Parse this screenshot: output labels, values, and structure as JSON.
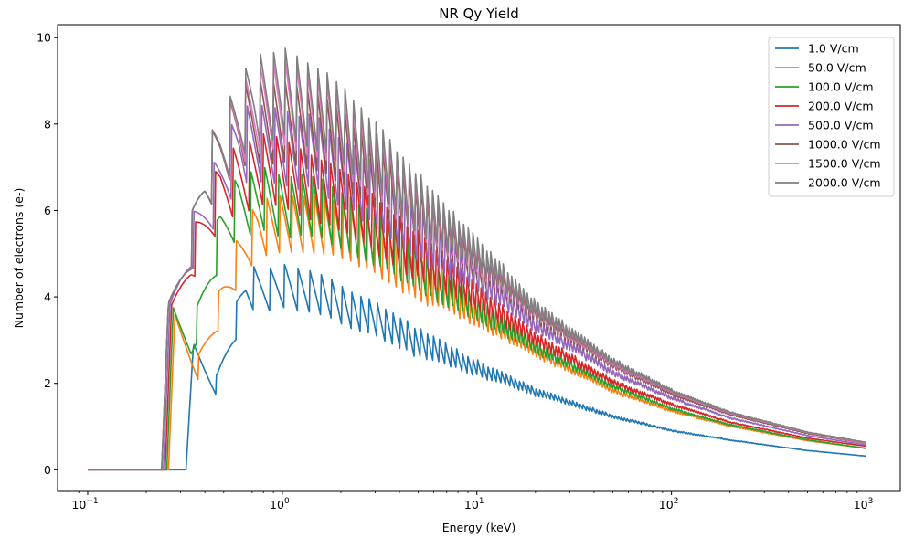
{
  "chart_data": {
    "type": "line",
    "title": "NR Qy Yield",
    "xlabel": "Energy (keV)",
    "ylabel": "Number of electrons (e-)",
    "xscale": "log",
    "xlim": [
      0.07,
      1500
    ],
    "ylim": [
      -0.5,
      10.3
    ],
    "xticks": [
      {
        "value": 0.1,
        "base": "10",
        "exp": "−1"
      },
      {
        "value": 1,
        "base": "10",
        "exp": "0"
      },
      {
        "value": 10,
        "base": "10",
        "exp": "1"
      },
      {
        "value": 100,
        "base": "10",
        "exp": "2"
      },
      {
        "value": 1000,
        "base": "10",
        "exp": "3"
      }
    ],
    "yticks": [
      0,
      2,
      4,
      6,
      8,
      10
    ],
    "legend_position": "top-right",
    "grid": false,
    "series": [
      {
        "name": "1.0 V/cm",
        "color": "#1f77b4",
        "threshold": 0.32,
        "jump": 2.95,
        "points": [
          [
            0.1,
            0
          ],
          [
            0.32,
            0
          ],
          [
            0.35,
            2.95
          ],
          [
            0.46,
            2.2
          ],
          [
            0.65,
            4.7
          ],
          [
            0.85,
            4.7
          ],
          [
            1.05,
            4.8
          ],
          [
            1.5,
            4.6
          ],
          [
            2.0,
            4.3
          ],
          [
            3.0,
            3.9
          ],
          [
            5.0,
            3.3
          ],
          [
            10.0,
            2.55
          ],
          [
            20.0,
            1.9
          ],
          [
            50.0,
            1.28
          ],
          [
            100.0,
            0.93
          ],
          [
            200.0,
            0.7
          ],
          [
            500.0,
            0.45
          ],
          [
            1000.0,
            0.32
          ]
        ]
      },
      {
        "name": "50.0 V/cm",
        "color": "#ff7f0e",
        "threshold": 0.26,
        "jump": 3.6,
        "points": [
          [
            0.1,
            0
          ],
          [
            0.26,
            0
          ],
          [
            0.28,
            3.6
          ],
          [
            0.37,
            2.65
          ],
          [
            0.5,
            4.5
          ],
          [
            0.58,
            5.3
          ],
          [
            0.75,
            6.3
          ],
          [
            1.0,
            6.4
          ],
          [
            1.5,
            6.4
          ],
          [
            2.0,
            6.2
          ],
          [
            3.0,
            5.7
          ],
          [
            5.0,
            4.95
          ],
          [
            10.0,
            3.9
          ],
          [
            20.0,
            2.9
          ],
          [
            50.0,
            1.9
          ],
          [
            100.0,
            1.4
          ],
          [
            200.0,
            1.03
          ],
          [
            500.0,
            0.68
          ],
          [
            1000.0,
            0.5
          ]
        ]
      },
      {
        "name": "100.0 V/cm",
        "color": "#2ca02c",
        "threshold": 0.255,
        "jump": 3.7,
        "points": [
          [
            0.1,
            0
          ],
          [
            0.255,
            0
          ],
          [
            0.275,
            3.75
          ],
          [
            0.34,
            3.2
          ],
          [
            0.48,
            6.1
          ],
          [
            0.6,
            6.9
          ],
          [
            0.8,
            7.0
          ],
          [
            1.0,
            6.9
          ],
          [
            1.5,
            6.8
          ],
          [
            2.0,
            6.55
          ],
          [
            3.0,
            6.0
          ],
          [
            5.0,
            5.2
          ],
          [
            10.0,
            4.05
          ],
          [
            20.0,
            3.0
          ],
          [
            50.0,
            2.0
          ],
          [
            100.0,
            1.45
          ],
          [
            200.0,
            1.06
          ],
          [
            500.0,
            0.7
          ],
          [
            1000.0,
            0.5
          ]
        ]
      },
      {
        "name": "200.0 V/cm",
        "color": "#d62728",
        "threshold": 0.25,
        "jump": 3.8,
        "points": [
          [
            0.1,
            0
          ],
          [
            0.25,
            0
          ],
          [
            0.27,
            3.82
          ],
          [
            0.34,
            5.5
          ],
          [
            0.48,
            7.2
          ],
          [
            0.6,
            7.6
          ],
          [
            0.8,
            7.8
          ],
          [
            1.0,
            7.7
          ],
          [
            1.5,
            7.3
          ],
          [
            2.0,
            7.0
          ],
          [
            3.0,
            6.4
          ],
          [
            5.0,
            5.55
          ],
          [
            10.0,
            4.35
          ],
          [
            20.0,
            3.2
          ],
          [
            50.0,
            2.1
          ],
          [
            100.0,
            1.55
          ],
          [
            200.0,
            1.12
          ],
          [
            500.0,
            0.74
          ],
          [
            1000.0,
            0.55
          ]
        ]
      },
      {
        "name": "500.0 V/cm",
        "color": "#9467bd",
        "threshold": 0.245,
        "jump": 3.85,
        "points": [
          [
            0.1,
            0
          ],
          [
            0.245,
            0
          ],
          [
            0.265,
            3.85
          ],
          [
            0.34,
            5.85
          ],
          [
            0.46,
            7.3
          ],
          [
            0.6,
            8.4
          ],
          [
            0.8,
            8.5
          ],
          [
            1.0,
            8.4
          ],
          [
            1.5,
            8.2
          ],
          [
            2.0,
            7.8
          ],
          [
            3.0,
            7.1
          ],
          [
            5.0,
            6.15
          ],
          [
            10.0,
            4.85
          ],
          [
            20.0,
            3.55
          ],
          [
            50.0,
            2.33
          ],
          [
            100.0,
            1.7
          ],
          [
            200.0,
            1.22
          ],
          [
            500.0,
            0.8
          ],
          [
            1000.0,
            0.58
          ]
        ]
      },
      {
        "name": "1000.0 V/cm",
        "color": "#8c564b",
        "threshold": 0.24,
        "jump": 3.87,
        "points": [
          [
            0.1,
            0
          ],
          [
            0.24,
            0
          ],
          [
            0.26,
            3.87
          ],
          [
            0.34,
            5.9
          ],
          [
            0.4,
            7.5
          ],
          [
            0.48,
            8.3
          ],
          [
            0.6,
            8.9
          ],
          [
            0.8,
            9.1
          ],
          [
            1.0,
            9.0
          ],
          [
            1.5,
            8.8
          ],
          [
            2.0,
            8.4
          ],
          [
            3.0,
            7.6
          ],
          [
            5.0,
            6.6
          ],
          [
            10.0,
            5.2
          ],
          [
            20.0,
            3.8
          ],
          [
            50.0,
            2.5
          ],
          [
            100.0,
            1.8
          ],
          [
            200.0,
            1.3
          ],
          [
            500.0,
            0.85
          ],
          [
            1000.0,
            0.62
          ]
        ]
      },
      {
        "name": "1500.0 V/cm",
        "color": "#e377c2",
        "threshold": 0.24,
        "jump": 3.87,
        "points": [
          [
            0.1,
            0
          ],
          [
            0.24,
            0
          ],
          [
            0.26,
            3.87
          ],
          [
            0.34,
            5.9
          ],
          [
            0.4,
            7.5
          ],
          [
            0.48,
            8.35
          ],
          [
            0.6,
            8.95
          ],
          [
            0.8,
            9.5
          ],
          [
            1.0,
            9.5
          ],
          [
            1.5,
            9.2
          ],
          [
            2.0,
            8.8
          ],
          [
            3.0,
            7.9
          ],
          [
            5.0,
            6.8
          ],
          [
            10.0,
            5.35
          ],
          [
            20.0,
            3.9
          ],
          [
            50.0,
            2.55
          ],
          [
            100.0,
            1.85
          ],
          [
            200.0,
            1.33
          ],
          [
            500.0,
            0.87
          ],
          [
            1000.0,
            0.63
          ]
        ]
      },
      {
        "name": "2000.0 V/cm",
        "color": "#7f7f7f",
        "threshold": 0.24,
        "jump": 3.87,
        "points": [
          [
            0.1,
            0
          ],
          [
            0.24,
            0
          ],
          [
            0.26,
            3.87
          ],
          [
            0.34,
            5.9
          ],
          [
            0.4,
            7.5
          ],
          [
            0.48,
            8.35
          ],
          [
            0.58,
            8.95
          ],
          [
            0.72,
            9.7
          ],
          [
            0.85,
            9.75
          ],
          [
            1.0,
            9.8
          ],
          [
            1.5,
            9.4
          ],
          [
            2.0,
            9.0
          ],
          [
            3.0,
            8.1
          ],
          [
            5.0,
            6.9
          ],
          [
            10.0,
            5.45
          ],
          [
            20.0,
            3.95
          ],
          [
            50.0,
            2.6
          ],
          [
            100.0,
            1.88
          ],
          [
            200.0,
            1.35
          ],
          [
            500.0,
            0.88
          ],
          [
            1000.0,
            0.64
          ]
        ]
      }
    ]
  }
}
